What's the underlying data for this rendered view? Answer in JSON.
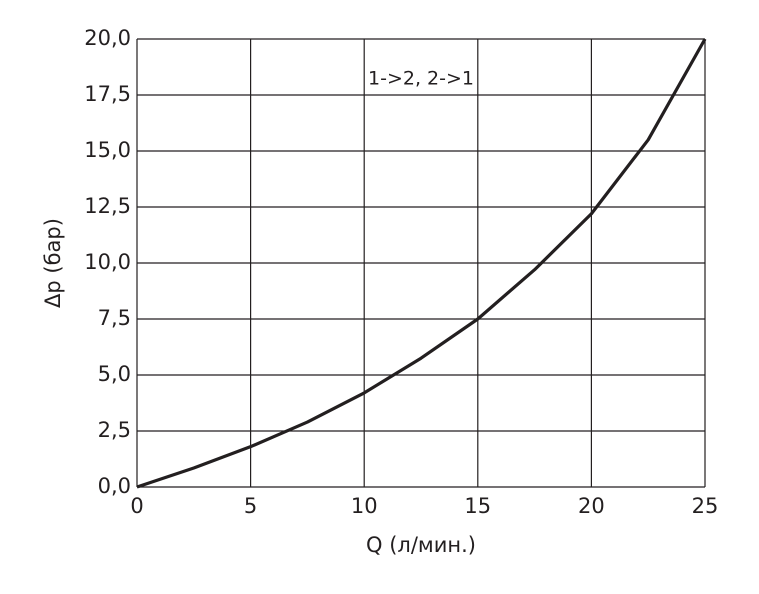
{
  "chart_data": {
    "type": "line",
    "annotation": "1->2, 2->1",
    "x_label": "Q (л/мин.)",
    "y_label": "Δp (бар)",
    "x": [
      0,
      2.5,
      5,
      7.5,
      10,
      12.5,
      15,
      17.5,
      20,
      22.5,
      25
    ],
    "values": [
      0,
      0.85,
      1.8,
      2.9,
      4.2,
      5.75,
      7.5,
      9.7,
      12.2,
      15.5,
      20
    ],
    "color": "#231f20",
    "xlim": [
      0,
      25
    ],
    "xticks": [
      0,
      5,
      10,
      15,
      20,
      25
    ],
    "ylim": [
      0,
      20
    ],
    "yticks": [
      {
        "value": 0,
        "label": "0,0"
      },
      {
        "value": 2.5,
        "label": "2,5"
      },
      {
        "value": 5,
        "label": "5,0"
      },
      {
        "value": 7.5,
        "label": "7,5"
      },
      {
        "value": 10,
        "label": "10,0"
      },
      {
        "value": 12.5,
        "label": "12,5"
      },
      {
        "value": 15,
        "label": "15,0"
      },
      {
        "value": 17.5,
        "label": "17,5"
      },
      {
        "value": 20,
        "label": "20,0"
      }
    ],
    "grid": true
  }
}
